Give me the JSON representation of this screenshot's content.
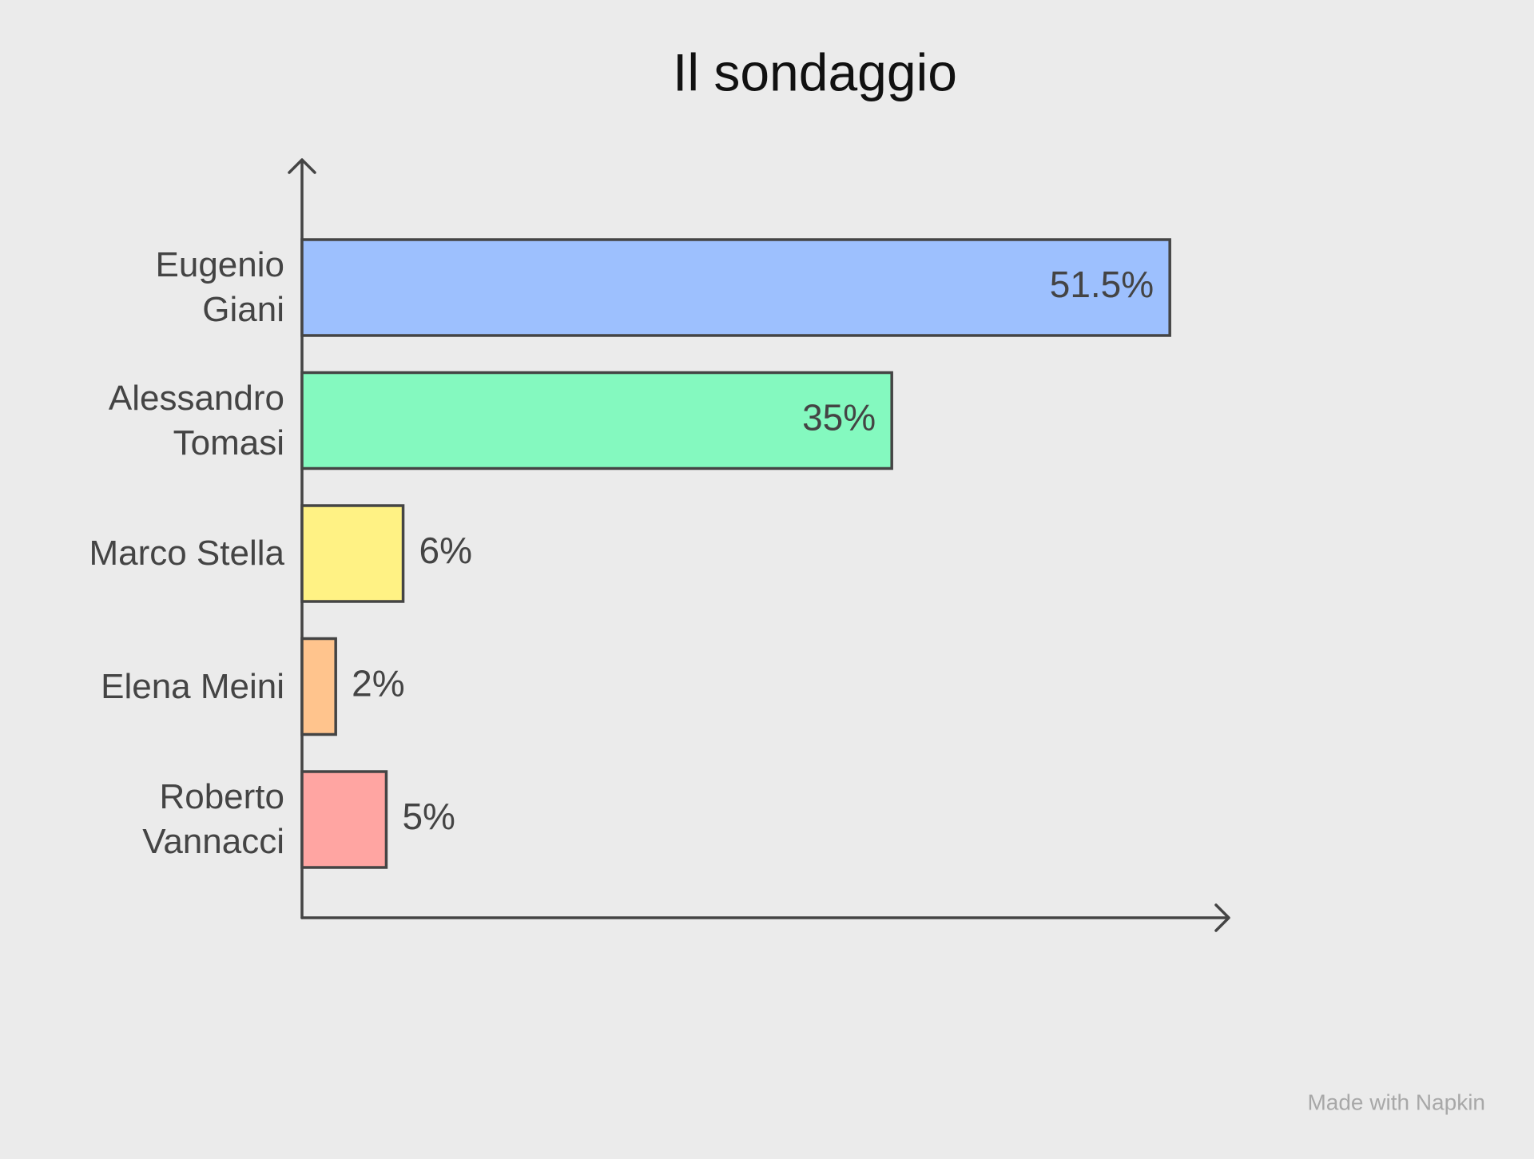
{
  "chart_data": {
    "type": "bar",
    "orientation": "horizontal",
    "title": "Il sondaggio",
    "categories": [
      "Eugenio Giani",
      "Alessandro Tomasi",
      "Marco Stella",
      "Elena Meini",
      "Roberto Vannacci"
    ],
    "values": [
      51.5,
      35,
      6,
      2,
      5
    ],
    "value_labels": [
      "51.5%",
      "35%",
      "6%",
      "2%",
      "5%"
    ],
    "colors": [
      "#9dc0fe",
      "#84f9bf",
      "#fff284",
      "#ffc48d",
      "#ffa5a2"
    ],
    "xlim": [
      0,
      55
    ],
    "credit": "Made with Napkin"
  }
}
